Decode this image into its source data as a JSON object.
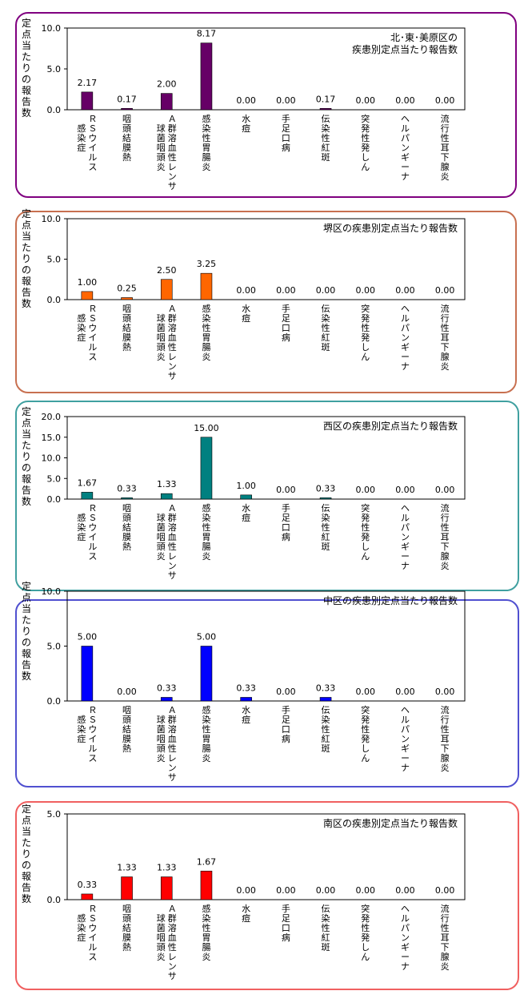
{
  "charts": [
    {
      "title_line1": "北･東･美原区の",
      "title_line2": "疾患別定点当たり報告数",
      "ylabel": "定点当たりの報告数",
      "border_color": "#800080",
      "bar_color": "#660066",
      "ylim": [
        0,
        10
      ],
      "ticks": [
        "0.0",
        "5.0",
        "10.0"
      ],
      "tick_values": [
        0,
        5,
        10
      ],
      "values": [
        2.17,
        0.17,
        2.0,
        8.17,
        0.0,
        0.0,
        0.17,
        0.0,
        0.0,
        0.0
      ],
      "value_labels": [
        "2.17",
        "0.17",
        "2.00",
        "8.17",
        "0.00",
        "0.00",
        "0.17",
        "0.00",
        "0.00",
        "0.00"
      ]
    },
    {
      "title_line1": "堺区の疾患別定点当たり報告数",
      "title_line2": "",
      "ylabel": "定点当たりの報告数",
      "border_color": "#c87050",
      "bar_color": "#ff6600",
      "ylim": [
        0,
        10
      ],
      "ticks": [
        "0.0",
        "5.0",
        "10.0"
      ],
      "tick_values": [
        0,
        5,
        10
      ],
      "values": [
        1.0,
        0.25,
        2.5,
        3.25,
        0.0,
        0.0,
        0.0,
        0.0,
        0.0,
        0.0
      ],
      "value_labels": [
        "1.00",
        "0.25",
        "2.50",
        "3.25",
        "0.00",
        "0.00",
        "0.00",
        "0.00",
        "0.00",
        "0.00"
      ]
    },
    {
      "title_line1": "西区の疾患別定点当たり報告数",
      "title_line2": "",
      "ylabel": "定点当たりの報告数",
      "border_color": "#40a0a0",
      "bar_color": "#008080",
      "ylim": [
        0,
        20
      ],
      "ticks": [
        "0.0",
        "5.0",
        "10.0",
        "15.0",
        "20.0"
      ],
      "tick_values": [
        0,
        5,
        10,
        15,
        20
      ],
      "values": [
        1.67,
        0.33,
        1.33,
        15.0,
        1.0,
        0.0,
        0.33,
        0.0,
        0.0,
        0.0
      ],
      "value_labels": [
        "1.67",
        "0.33",
        "1.33",
        "15.00",
        "1.00",
        "0.00",
        "0.33",
        "0.00",
        "0.00",
        "0.00"
      ]
    },
    {
      "title_line1": "中区の疾患別定点当たり報告数",
      "title_line2": "",
      "ylabel": "定点当たりの報告数",
      "border_color": "#5050d0",
      "bar_color": "#0000ff",
      "ylim": [
        0,
        10
      ],
      "ticks": [
        "0.0",
        "5.0",
        "10.0"
      ],
      "tick_values": [
        0,
        5,
        10
      ],
      "values": [
        5.0,
        0.0,
        0.33,
        5.0,
        0.33,
        0.0,
        0.33,
        0.0,
        0.0,
        0.0
      ],
      "value_labels": [
        "5.00",
        "0.00",
        "0.33",
        "5.00",
        "0.33",
        "0.00",
        "0.33",
        "0.00",
        "0.00",
        "0.00"
      ]
    },
    {
      "title_line1": "南区の疾患別定点当たり報告数",
      "title_line2": "",
      "ylabel": "定点当たりの報告数",
      "border_color": "#f06060",
      "bar_color": "#ff0000",
      "ylim": [
        0,
        5
      ],
      "ticks": [
        "0.0",
        "5.0"
      ],
      "tick_values": [
        0,
        5
      ],
      "values": [
        0.33,
        1.33,
        1.33,
        1.67,
        0.0,
        0.0,
        0.0,
        0.0,
        0.0,
        0.0
      ],
      "value_labels": [
        "0.33",
        "1.33",
        "1.33",
        "1.67",
        "0.00",
        "0.00",
        "0.00",
        "0.00",
        "0.00",
        "0.00"
      ]
    }
  ],
  "categories": [
    {
      "col1": "ＲＳウイルス",
      "col2": "感染症"
    },
    {
      "col1": "咽頭結膜熱",
      "col2": ""
    },
    {
      "col1": "Ａ群溶血性レンサ",
      "col2": "球菌咽頭炎"
    },
    {
      "col1": "感染性胃腸炎",
      "col2": ""
    },
    {
      "col1": "水痘",
      "col2": ""
    },
    {
      "col1": "手足口病",
      "col2": ""
    },
    {
      "col1": "伝染性紅斑",
      "col2": ""
    },
    {
      "col1": "突発性発しん",
      "col2": ""
    },
    {
      "col1": "ヘルパンギーナ",
      "col2": ""
    },
    {
      "col1": "流行性耳下腺炎",
      "col2": ""
    }
  ],
  "chart_data": [
    {
      "type": "bar",
      "title": "北･東･美原区の疾患別定点当たり報告数",
      "ylabel": "定点当たりの報告数",
      "ylim": [
        0,
        10
      ],
      "categories": [
        "ＲＳウイルス感染症",
        "咽頭結膜熱",
        "Ａ群溶血性レンサ球菌咽頭炎",
        "感染性胃腸炎",
        "水痘",
        "手足口病",
        "伝染性紅斑",
        "突発性発しん",
        "ヘルパンギーナ",
        "流行性耳下腺炎"
      ],
      "values": [
        2.17,
        0.17,
        2.0,
        8.17,
        0.0,
        0.0,
        0.17,
        0.0,
        0.0,
        0.0
      ]
    },
    {
      "type": "bar",
      "title": "堺区の疾患別定点当たり報告数",
      "ylabel": "定点当たりの報告数",
      "ylim": [
        0,
        10
      ],
      "categories": [
        "ＲＳウイルス感染症",
        "咽頭結膜熱",
        "Ａ群溶血性レンサ球菌咽頭炎",
        "感染性胃腸炎",
        "水痘",
        "手足口病",
        "伝染性紅斑",
        "突発性発しん",
        "ヘルパンギーナ",
        "流行性耳下腺炎"
      ],
      "values": [
        1.0,
        0.25,
        2.5,
        3.25,
        0.0,
        0.0,
        0.0,
        0.0,
        0.0,
        0.0
      ]
    },
    {
      "type": "bar",
      "title": "西区の疾患別定点当たり報告数",
      "ylabel": "定点当たりの報告数",
      "ylim": [
        0,
        20
      ],
      "categories": [
        "ＲＳウイルス感染症",
        "咽頭結膜熱",
        "Ａ群溶血性レンサ球菌咽頭炎",
        "感染性胃腸炎",
        "水痘",
        "手足口病",
        "伝染性紅斑",
        "突発性発しん",
        "ヘルパンギーナ",
        "流行性耳下腺炎"
      ],
      "values": [
        1.67,
        0.33,
        1.33,
        15.0,
        1.0,
        0.0,
        0.33,
        0.0,
        0.0,
        0.0
      ]
    },
    {
      "type": "bar",
      "title": "中区の疾患別定点当たり報告数",
      "ylabel": "定点当たりの報告数",
      "ylim": [
        0,
        10
      ],
      "categories": [
        "ＲＳウイルス感染症",
        "咽頭結膜熱",
        "Ａ群溶血性レンサ球菌咽頭炎",
        "感染性胃腸炎",
        "水痘",
        "手足口病",
        "伝染性紅斑",
        "突発性発しん",
        "ヘルパンギーナ",
        "流行性耳下腺炎"
      ],
      "values": [
        5.0,
        0.0,
        0.33,
        5.0,
        0.33,
        0.0,
        0.33,
        0.0,
        0.0,
        0.0
      ]
    },
    {
      "type": "bar",
      "title": "南区の疾患別定点当たり報告数",
      "ylabel": "定点当たりの報告数",
      "ylim": [
        0,
        5
      ],
      "categories": [
        "ＲＳウイルス感染症",
        "咽頭結膜熱",
        "Ａ群溶血性レンサ球菌咽頭炎",
        "感染性胃腸炎",
        "水痘",
        "手足口病",
        "伝染性紅斑",
        "突発性発しん",
        "ヘルパンギーナ",
        "流行性耳下腺炎"
      ],
      "values": [
        0.33,
        1.33,
        1.33,
        1.67,
        0.0,
        0.0,
        0.0,
        0.0,
        0.0,
        0.0
      ]
    }
  ]
}
